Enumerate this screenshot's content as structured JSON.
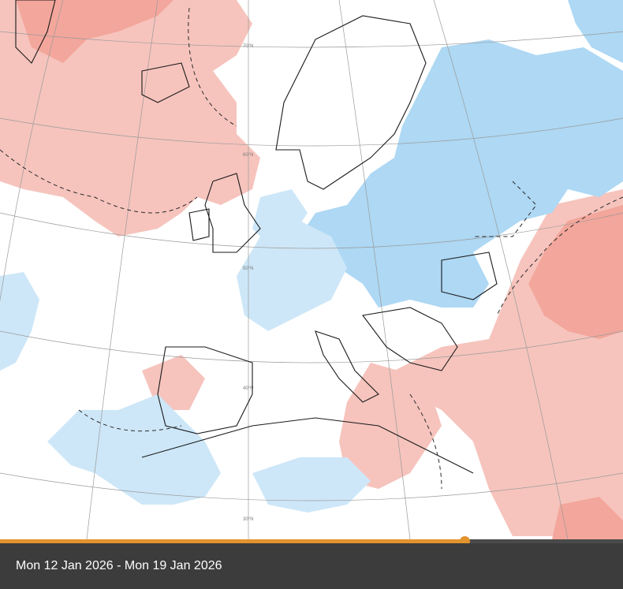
{
  "map": {
    "colors": {
      "background": "#ffffff",
      "warm_light": "#f6c4bd",
      "warm_medium": "#f3a69b",
      "warm_strong": "#ec8a7e",
      "cold_light": "#cde7f8",
      "cold_medium": "#aed8f4",
      "cold_strong": "#8dcaf0",
      "coastline": "#1a1a1a",
      "border": "#666666",
      "graticule": "#9a9a9a",
      "contour": "#2a2a2a"
    },
    "latitude_labels": {
      "lat_70": "70°N",
      "lat_60": "60°N",
      "lat_50": "50°N",
      "lat_40": "40°N",
      "lat_30": "30°N"
    }
  },
  "timeline": {
    "progress_fraction": 0.745,
    "fill_color": "#e2932d",
    "track_color": "#4a4a4a"
  },
  "caption": {
    "text": "Mon 12 Jan 2026 - Mon 19 Jan 2026"
  }
}
